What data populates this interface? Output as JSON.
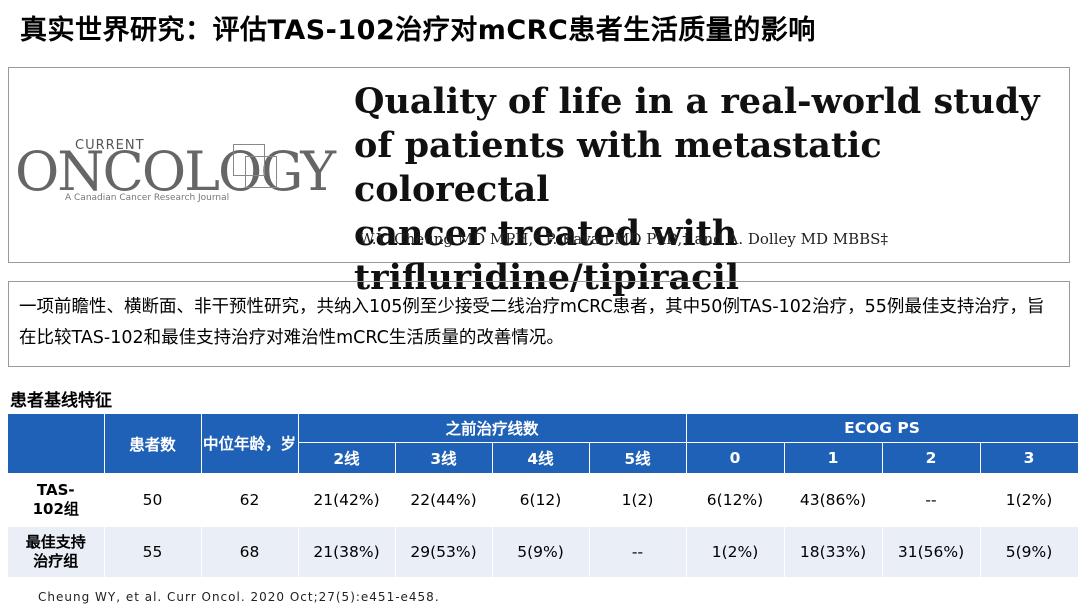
{
  "slide": {
    "title": "真实世界研究：评估TAS-102治疗对mCRC患者生活质量的影响"
  },
  "journal": {
    "top": "CURRENT",
    "name": "ONCOLOGY",
    "subtitle": "A Canadian Cancer Research Journal"
  },
  "paper": {
    "title_line1": "Quality of life in a real-world study",
    "title_line2": "of patients with metastatic colorectal",
    "title_line3": "cancer treated with trifluridine/tipiracil",
    "authors": "W.Y. Cheung MD MPH,* P. Kavan MD PhD,† and A. Dolley MD MBBS‡"
  },
  "summary": {
    "text": "一项前瞻性、横断面、非干预性研究，共纳入105例至少接受二线治疗mCRC患者，其中50例TAS-102治疗，55例最佳支持治疗，旨在比较TAS-102和最佳支持治疗对难治性mCRC生活质量的改善情况。"
  },
  "table": {
    "heading": "患者基线特征",
    "col_patients": "患者数",
    "col_age": "中位年龄，岁",
    "group_prior": "之前治疗线数",
    "group_ecog": "ECOG PS",
    "sub_prior": [
      "2线",
      "3线",
      "4线",
      "5线"
    ],
    "sub_ecog": [
      "0",
      "1",
      "2",
      "3"
    ],
    "rows": [
      {
        "label": "TAS-102组",
        "patients": "50",
        "age": "62",
        "prior": [
          "21(42%)",
          "22(44%)",
          "6(12)",
          "1(2)"
        ],
        "ecog": [
          "6(12%)",
          "43(86%)",
          "--",
          "1(2%)"
        ]
      },
      {
        "label": "最佳支持治疗组",
        "patients": "55",
        "age": "68",
        "prior": [
          "21(38%)",
          "29(53%)",
          "5(9%)",
          "--"
        ],
        "ecog": [
          "1(2%)",
          "18(33%)",
          "31(56%)",
          "5(9%)"
        ]
      }
    ]
  },
  "citation": "Cheung WY, et al. Curr Oncol. 2020 Oct;27(5):e451-e458.",
  "colors": {
    "header_blue": "#1f61b6",
    "row_alt": "#e9eef7"
  }
}
